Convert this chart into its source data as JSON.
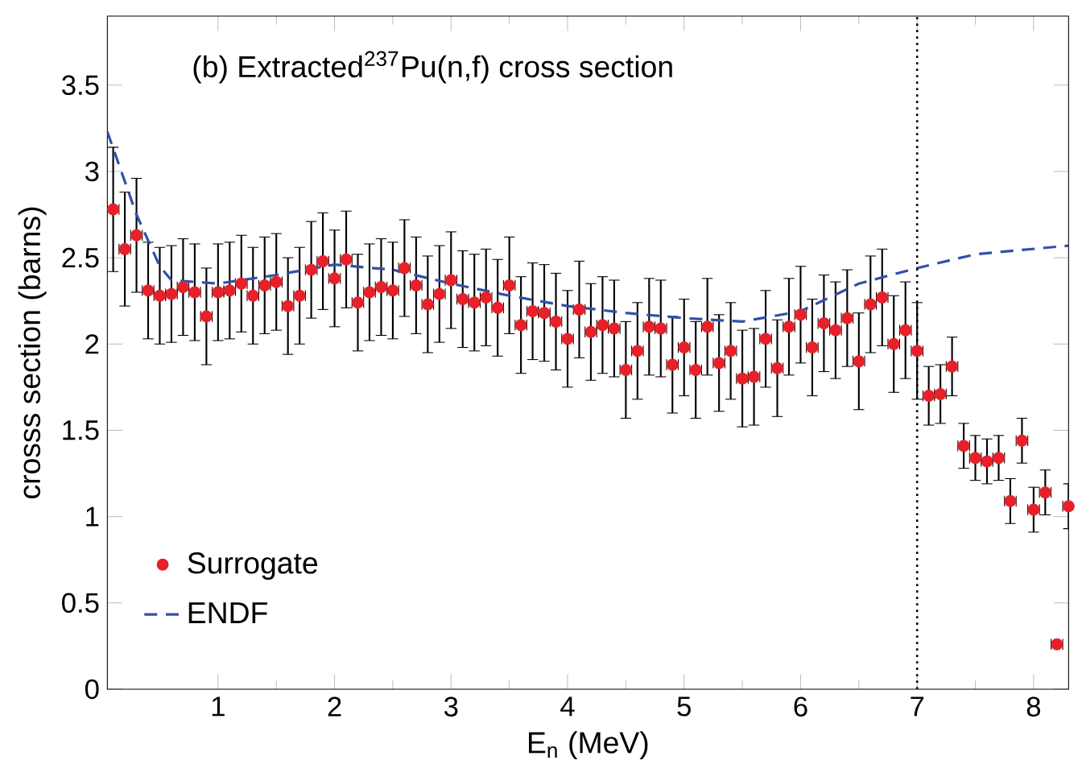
{
  "chart_data": {
    "type": "scatter",
    "title": "(b) Extracted$^{237}$Pu(n,f) cross section",
    "xlabel": "E$_{n}$ (MeV)",
    "ylabel": "crosss section (barns)",
    "xlim": [
      0.05,
      8.3
    ],
    "ylim": [
      0,
      3.9
    ],
    "xticks": [
      1,
      2,
      3,
      4,
      5,
      6,
      7,
      8
    ],
    "yticks": [
      0,
      0.5,
      1,
      1.5,
      2,
      2.5,
      3,
      3.5
    ],
    "grid": false,
    "legend": "bottom left",
    "ref_lines": [
      {
        "axis": "x",
        "value": 7,
        "line_style": "dotted",
        "color": "#000000"
      }
    ],
    "series": [
      {
        "name": "Surrogate",
        "color": "#e8202a",
        "marker": "circle",
        "x": [
          0.1,
          0.2,
          0.3,
          0.4,
          0.5,
          0.6,
          0.7,
          0.8,
          0.9,
          1.0,
          1.1,
          1.2,
          1.3,
          1.4,
          1.5,
          1.6,
          1.7,
          1.8,
          1.9,
          2.0,
          2.1,
          2.2,
          2.3,
          2.4,
          2.5,
          2.6,
          2.7,
          2.8,
          2.9,
          3.0,
          3.1,
          3.2,
          3.3,
          3.4,
          3.5,
          3.6,
          3.7,
          3.8,
          3.9,
          4.0,
          4.1,
          4.2,
          4.3,
          4.4,
          4.5,
          4.6,
          4.7,
          4.8,
          4.9,
          5.0,
          5.1,
          5.2,
          5.3,
          5.4,
          5.5,
          5.6,
          5.7,
          5.8,
          5.9,
          6.0,
          6.1,
          6.2,
          6.3,
          6.4,
          6.5,
          6.6,
          6.7,
          6.8,
          6.9,
          7.0,
          7.1,
          7.2,
          7.3,
          7.4,
          7.5,
          7.6,
          7.7,
          7.8,
          7.9,
          8.0,
          8.1,
          8.2,
          8.3
        ],
        "values": [
          2.78,
          2.55,
          2.63,
          2.31,
          2.28,
          2.29,
          2.33,
          2.3,
          2.16,
          2.3,
          2.31,
          2.35,
          2.28,
          2.34,
          2.36,
          2.22,
          2.28,
          2.43,
          2.48,
          2.38,
          2.49,
          2.24,
          2.3,
          2.33,
          2.31,
          2.44,
          2.34,
          2.23,
          2.29,
          2.37,
          2.26,
          2.24,
          2.27,
          2.21,
          2.34,
          2.11,
          2.19,
          2.18,
          2.13,
          2.03,
          2.2,
          2.07,
          2.11,
          2.09,
          1.85,
          1.96,
          2.1,
          2.09,
          1.88,
          1.98,
          1.85,
          2.1,
          1.89,
          1.96,
          1.8,
          1.81,
          2.03,
          1.86,
          2.1,
          2.17,
          1.98,
          2.12,
          2.08,
          2.15,
          1.9,
          2.23,
          2.27,
          2.0,
          2.08,
          1.96,
          1.7,
          1.71,
          1.87,
          1.41,
          1.34,
          1.32,
          1.34,
          1.09,
          1.44,
          1.04,
          1.14,
          0.26,
          1.06
        ],
        "errors": [
          0.36,
          0.33,
          0.33,
          0.28,
          0.28,
          0.28,
          0.28,
          0.28,
          0.28,
          0.28,
          0.28,
          0.28,
          0.28,
          0.28,
          0.28,
          0.28,
          0.28,
          0.28,
          0.28,
          0.28,
          0.28,
          0.28,
          0.28,
          0.28,
          0.28,
          0.28,
          0.28,
          0.28,
          0.28,
          0.28,
          0.28,
          0.28,
          0.28,
          0.28,
          0.28,
          0.28,
          0.28,
          0.28,
          0.28,
          0.28,
          0.28,
          0.28,
          0.28,
          0.28,
          0.28,
          0.28,
          0.28,
          0.28,
          0.28,
          0.28,
          0.28,
          0.28,
          0.28,
          0.28,
          0.28,
          0.28,
          0.28,
          0.28,
          0.28,
          0.28,
          0.28,
          0.28,
          0.28,
          0.28,
          0.28,
          0.28,
          0.28,
          0.28,
          0.28,
          0.28,
          0.17,
          0.17,
          0.17,
          0.13,
          0.13,
          0.13,
          0.13,
          0.13,
          0.13,
          0.13,
          0.13,
          null,
          0.13
        ],
        "xerrors": [
          0.05,
          0.05,
          0.05,
          0.05,
          0.05,
          0.05,
          0.05,
          0.05,
          0.05,
          0.05,
          0.05,
          0.05,
          0.05,
          0.05,
          0.05,
          0.05,
          0.05,
          0.05,
          0.05,
          0.05,
          0.05,
          0.05,
          0.05,
          0.05,
          0.05,
          0.05,
          0.05,
          0.05,
          0.05,
          0.05,
          0.05,
          0.05,
          0.05,
          0.05,
          0.05,
          0.05,
          0.05,
          0.05,
          0.05,
          0.05,
          0.05,
          0.05,
          0.05,
          0.05,
          0.05,
          0.05,
          0.05,
          0.05,
          0.05,
          0.05,
          0.05,
          0.05,
          0.05,
          0.05,
          0.05,
          0.05,
          0.05,
          0.05,
          0.05,
          0.05,
          0.05,
          0.05,
          0.05,
          0.05,
          0.05,
          0.05,
          0.05,
          0.05,
          0.05,
          0.05,
          0.05,
          0.05,
          0.05,
          0.05,
          0.05,
          0.05,
          0.05,
          0.05,
          0.05,
          0.05,
          0.05,
          0.05,
          0.05
        ]
      },
      {
        "name": "ENDF",
        "type": "line",
        "color": "#3050a8",
        "marker": "none",
        "line_style": "dashed",
        "x": [
          0.05,
          0.3,
          0.5,
          0.6,
          1.0,
          1.5,
          2.0,
          2.5,
          3.0,
          3.5,
          4.0,
          4.5,
          5.0,
          5.5,
          6.0,
          6.5,
          7.0,
          7.5,
          8.3
        ],
        "values": [
          3.23,
          2.75,
          2.45,
          2.37,
          2.35,
          2.4,
          2.46,
          2.43,
          2.35,
          2.28,
          2.22,
          2.18,
          2.15,
          2.13,
          2.19,
          2.35,
          2.44,
          2.52,
          2.57
        ]
      }
    ]
  }
}
